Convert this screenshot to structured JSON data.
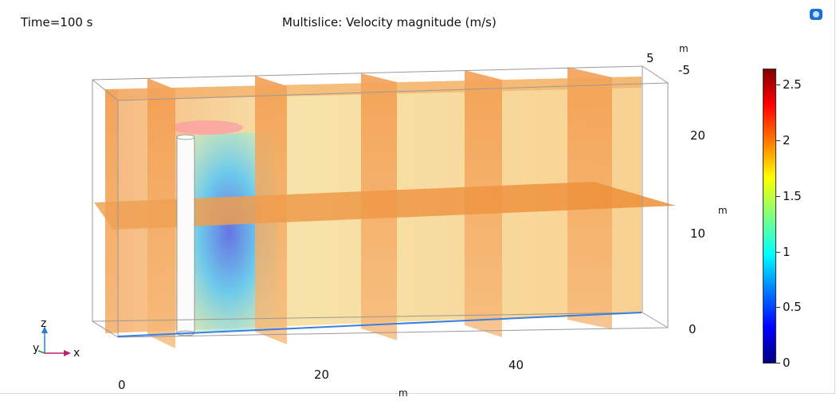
{
  "header": {
    "time_label": "Time=100 s",
    "plot_title": "Multislice: Velocity magnitude (m/s)"
  },
  "icons": {
    "logo": "comsol-logo-icon"
  },
  "axes": {
    "x_ticks": [
      "0",
      "20",
      "40"
    ],
    "x_unit": "m",
    "y_ticks": [
      "5",
      "-5"
    ],
    "y_unit": "m",
    "z_ticks": [
      "20",
      "10",
      "0"
    ],
    "z_unit": "m"
  },
  "triad": {
    "x": "x",
    "y": "y",
    "z": "z"
  },
  "colorbar": {
    "ticks": [
      "2.5",
      "2",
      "1.5",
      "1",
      "0.5",
      "0"
    ],
    "min": 0,
    "max": 2.65,
    "colormap": "rainbow"
  },
  "colors": {
    "slice_orange": "#f2a75e",
    "slice_deep": "#ef8b2e",
    "flow_low": "#3a63e0",
    "flow_mid": "#7fe0f0"
  }
}
